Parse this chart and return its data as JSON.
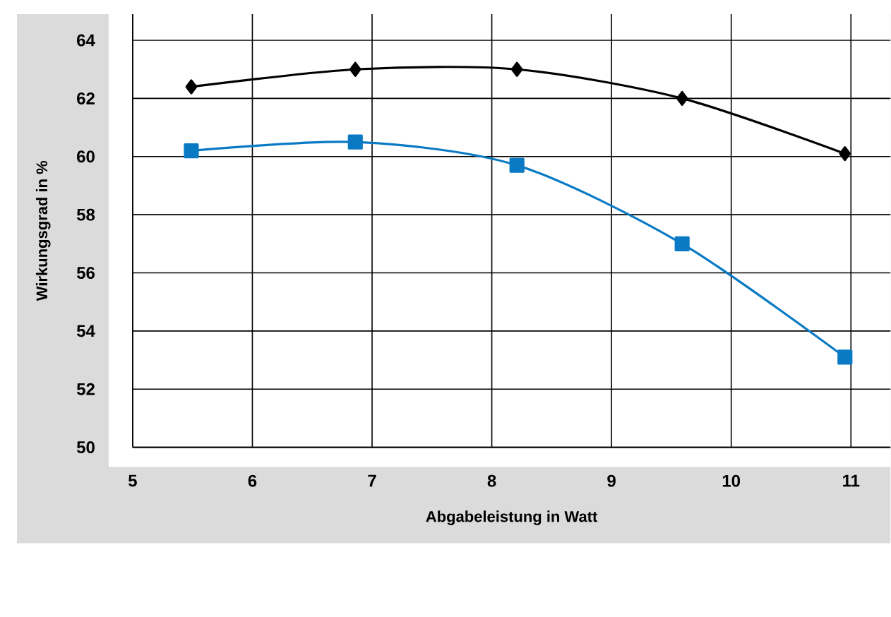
{
  "chart_data": {
    "type": "line",
    "xlabel": "Abgabeleistung in Watt",
    "ylabel": "Wirkungsgrad in %",
    "x": [
      5.49,
      6.86,
      8.21,
      9.59,
      10.95
    ],
    "series": [
      {
        "color": "#000000",
        "marker": "diamond",
        "values": [
          62.4,
          63.0,
          63.0,
          62.0,
          60.1
        ]
      },
      {
        "color": "#0a7ac4",
        "marker": "square",
        "values": [
          60.2,
          60.5,
          59.7,
          57.0,
          53.1
        ]
      }
    ],
    "xlim": [
      5,
      11.33
    ],
    "ylim": [
      50,
      64.9
    ],
    "xticks": [
      5,
      6,
      7,
      8,
      9,
      10,
      11
    ],
    "yticks": [
      50,
      52,
      54,
      56,
      58,
      60,
      62,
      64
    ],
    "grid": true
  }
}
